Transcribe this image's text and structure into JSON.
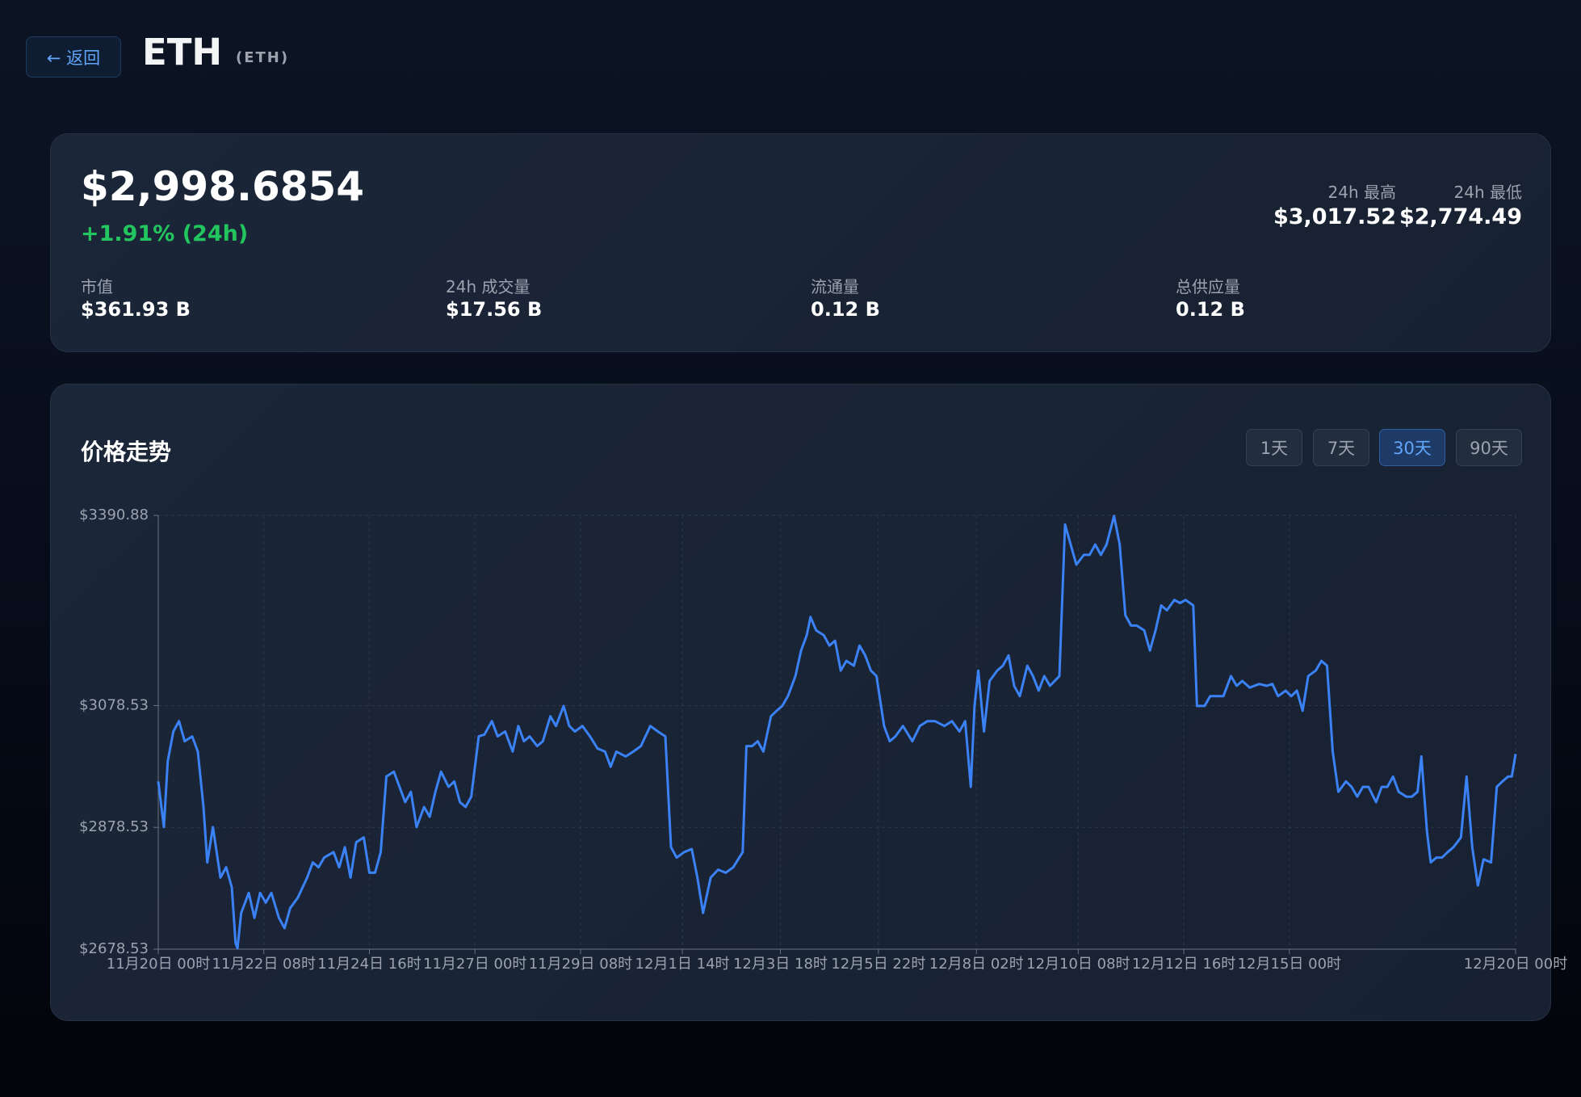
{
  "header": {
    "back": "← 返回",
    "title": "ETH",
    "symbol": "(ETH)"
  },
  "summary": {
    "price": "$2,998.6854",
    "change": "+1.91% (24h)",
    "high_label": "24h 最高",
    "high": "$3,017.52",
    "low_label": "24h 最低",
    "low": "$2,774.49",
    "stats": [
      {
        "label": "市值",
        "value": "$361.93 B"
      },
      {
        "label": "24h 成交量",
        "value": "$17.56 B"
      },
      {
        "label": "流通量",
        "value": "0.12 B"
      },
      {
        "label": "总供应量",
        "value": "0.12 B"
      }
    ]
  },
  "panel": {
    "title": "价格走势",
    "ranges": [
      "1天",
      "7天",
      "30天",
      "90天"
    ],
    "selected": 2
  },
  "chart_data": {
    "type": "line",
    "color": "#3b82f6",
    "grid": true,
    "x": [
      0,
      3,
      5,
      8,
      11,
      14,
      18,
      21,
      24,
      26,
      29,
      33,
      36,
      39,
      41,
      42,
      44,
      48,
      51,
      54,
      57,
      60,
      64,
      67,
      70,
      74,
      79,
      82,
      85,
      88,
      93,
      96,
      99,
      102,
      105,
      109,
      112,
      115,
      118,
      121,
      125,
      128,
      131,
      134,
      137,
      141,
      144,
      147,
      150,
      154,
      157,
      160,
      163,
      166,
      170,
      173,
      177,
      180,
      184,
      188,
      191,
      194,
      197,
      201,
      204,
      208,
      211,
      215,
      218,
      221,
      225,
      229,
      233,
      237,
      240,
      243,
      248,
      252,
      256,
      261,
      265,
      269,
      272,
      275,
      279,
      283,
      286,
      289,
      293,
      297,
      301,
      305,
      310,
      312,
      315,
      318,
      321,
      325,
      328,
      331,
      334,
      338,
      341,
      344,
      346,
      349,
      353,
      356,
      359,
      362,
      365,
      369,
      372,
      375,
      378,
      381,
      385,
      388,
      391,
      395,
      400,
      404,
      408,
      412,
      417,
      421,
      425,
      428,
      431,
      433,
      435,
      438,
      441,
      445,
      448,
      451,
      454,
      457,
      461,
      464,
      467,
      470,
      473,
      478,
      481,
      484,
      487,
      491,
      494,
      497,
      500,
      503,
      507,
      510,
      513,
      516,
      519,
      523,
      526,
      529,
      532,
      535,
      539,
      542,
      545,
      549,
      551,
      555,
      558,
      562,
      565,
      569,
      572,
      575,
      579,
      584,
      588,
      591,
      594,
      598,
      601,
      604,
      607,
      610,
      614,
      617,
      620,
      623,
      626,
      630,
      633,
      636,
      639,
      642,
      646,
      649,
      652,
      655,
      658,
      662,
      665,
      668,
      670,
      673,
      675,
      678,
      681,
      684,
      687,
      691,
      694,
      697,
      700,
      703,
      707,
      710,
      713,
      716,
      718,
      720
    ],
    "values": [
      2954,
      2879,
      2987,
      3036,
      3053,
      3020,
      3028,
      3003,
      2912,
      2821,
      2879,
      2796,
      2813,
      2780,
      2689,
      2680,
      2738,
      2771,
      2730,
      2771,
      2755,
      2771,
      2730,
      2713,
      2746,
      2763,
      2796,
      2821,
      2813,
      2829,
      2838,
      2813,
      2846,
      2796,
      2854,
      2862,
      2804,
      2804,
      2838,
      2962,
      2970,
      2945,
      2920,
      2937,
      2879,
      2912,
      2896,
      2937,
      2970,
      2945,
      2954,
      2920,
      2912,
      2929,
      3028,
      3031,
      3053,
      3028,
      3036,
      3003,
      3045,
      3020,
      3028,
      3012,
      3020,
      3061,
      3045,
      3078,
      3045,
      3036,
      3045,
      3028,
      3008,
      3003,
      2978,
      3003,
      2995,
      3003,
      3012,
      3045,
      3036,
      3028,
      2846,
      2829,
      2838,
      2843,
      2796,
      2738,
      2796,
      2809,
      2804,
      2813,
      2838,
      3012,
      3012,
      3020,
      3003,
      3061,
      3070,
      3078,
      3094,
      3127,
      3169,
      3194,
      3224,
      3202,
      3194,
      3177,
      3185,
      3136,
      3152,
      3144,
      3177,
      3161,
      3136,
      3127,
      3045,
      3020,
      3028,
      3045,
      3020,
      3045,
      3053,
      3053,
      3045,
      3053,
      3036,
      3053,
      2945,
      3078,
      3136,
      3036,
      3119,
      3136,
      3144,
      3161,
      3111,
      3094,
      3144,
      3127,
      3103,
      3127,
      3111,
      3127,
      3376,
      3343,
      3310,
      3326,
      3326,
      3343,
      3326,
      3343,
      3390,
      3343,
      3227,
      3210,
      3210,
      3202,
      3169,
      3202,
      3243,
      3235,
      3252,
      3247,
      3252,
      3243,
      3078,
      3078,
      3094,
      3094,
      3094,
      3127,
      3111,
      3119,
      3108,
      3114,
      3111,
      3114,
      3094,
      3103,
      3094,
      3103,
      3070,
      3127,
      3136,
      3152,
      3144,
      3003,
      2937,
      2954,
      2945,
      2929,
      2945,
      2945,
      2920,
      2945,
      2945,
      2962,
      2937,
      2929,
      2929,
      2937,
      2995,
      2871,
      2821,
      2829,
      2829,
      2838,
      2846,
      2862,
      2962,
      2846,
      2783,
      2826,
      2821,
      2945,
      2954,
      2962,
      2962,
      2999
    ],
    "xlim": [
      0,
      720
    ],
    "xticks": [
      {
        "value": 0,
        "label": "11月20日 00时"
      },
      {
        "value": 56,
        "label": "11月22日 08时"
      },
      {
        "value": 112,
        "label": "11月24日 16时"
      },
      {
        "value": 168,
        "label": "11月27日 00时"
      },
      {
        "value": 224,
        "label": "11月29日 08时"
      },
      {
        "value": 278,
        "label": "12月1日 14时"
      },
      {
        "value": 330,
        "label": "12月3日 18时"
      },
      {
        "value": 382,
        "label": "12月5日 22时"
      },
      {
        "value": 434,
        "label": "12月8日 02时"
      },
      {
        "value": 488,
        "label": "12月10日 08时"
      },
      {
        "value": 544,
        "label": "12月12日 16时"
      },
      {
        "value": 600,
        "label": "12月15日 00时"
      },
      {
        "value": 720,
        "label": "12月20日 00时"
      }
    ],
    "ylim": [
      2678.53,
      3390.88
    ],
    "yticks": [
      {
        "value": 2678.53,
        "label": "$2678.53"
      },
      {
        "value": 2878.53,
        "label": "$2878.53"
      },
      {
        "value": 3078.53,
        "label": "$3078.53"
      },
      {
        "value": 3390.88,
        "label": "$3390.88"
      }
    ]
  }
}
